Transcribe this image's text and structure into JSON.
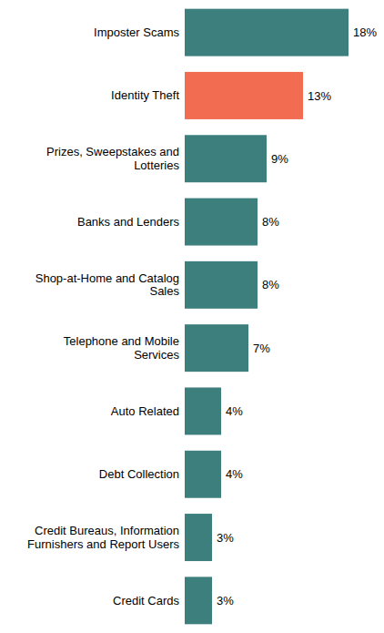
{
  "chart_data": {
    "type": "bar",
    "orientation": "horizontal",
    "categories": [
      "Imposter Scams",
      "Identity Theft",
      "Prizes, Sweepstakes and Lotteries",
      "Banks and Lenders",
      "Shop-at-Home and Catalog Sales",
      "Telephone and Mobile Services",
      "Auto Related",
      "Debt Collection",
      "Credit Bureaus, Information Furnishers and Report Users",
      "Credit Cards"
    ],
    "values": [
      18,
      13,
      9,
      8,
      8,
      7,
      4,
      4,
      3,
      3
    ],
    "value_labels": [
      "18%",
      "13%",
      "9%",
      "8%",
      "8%",
      "7%",
      "4%",
      "4%",
      "3%",
      "3%"
    ],
    "colors": [
      "#3d7f7d",
      "#f26c52",
      "#3d7f7d",
      "#3d7f7d",
      "#3d7f7d",
      "#3d7f7d",
      "#3d7f7d",
      "#3d7f7d",
      "#3d7f7d",
      "#3d7f7d"
    ],
    "xlim": [
      0,
      18
    ],
    "data_labels": true,
    "tick_labels": "y",
    "grid": false
  }
}
